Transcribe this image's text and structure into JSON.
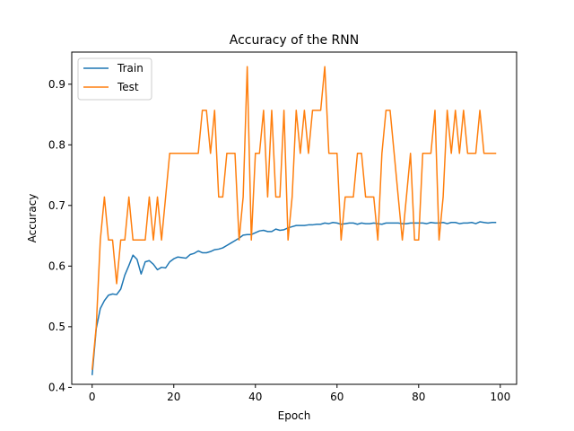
{
  "chart_data": {
    "type": "line",
    "title": "Accuracy of the RNN",
    "xlabel": "Epoch",
    "ylabel": "Accuracy",
    "xlim": [
      -5,
      104
    ],
    "ylim": [
      0.405,
      0.953
    ],
    "xticks": [
      0,
      20,
      40,
      60,
      80,
      100
    ],
    "yticks": [
      0.4,
      0.5,
      0.6,
      0.7,
      0.8,
      0.9
    ],
    "grid": false,
    "legend": {
      "position": "top-left"
    },
    "series": [
      {
        "name": "Train",
        "color": "#1f77b4",
        "x": [
          0,
          1,
          2,
          3,
          4,
          5,
          6,
          7,
          8,
          9,
          10,
          11,
          12,
          13,
          14,
          15,
          16,
          17,
          18,
          19,
          20,
          21,
          22,
          23,
          24,
          25,
          26,
          27,
          28,
          29,
          30,
          31,
          32,
          33,
          34,
          35,
          36,
          37,
          38,
          39,
          40,
          41,
          42,
          43,
          44,
          45,
          46,
          47,
          48,
          49,
          50,
          51,
          52,
          53,
          54,
          55,
          56,
          57,
          58,
          59,
          60,
          61,
          62,
          63,
          64,
          65,
          66,
          67,
          68,
          69,
          70,
          71,
          72,
          73,
          74,
          75,
          76,
          77,
          78,
          79,
          80,
          81,
          82,
          83,
          84,
          85,
          86,
          87,
          88,
          89,
          90,
          91,
          92,
          93,
          94,
          95,
          96,
          97,
          98,
          99
        ],
        "values": [
          0.42,
          0.497,
          0.53,
          0.543,
          0.552,
          0.554,
          0.553,
          0.562,
          0.585,
          0.601,
          0.618,
          0.611,
          0.587,
          0.607,
          0.609,
          0.603,
          0.594,
          0.598,
          0.597,
          0.607,
          0.612,
          0.615,
          0.614,
          0.613,
          0.619,
          0.621,
          0.625,
          0.622,
          0.622,
          0.624,
          0.627,
          0.628,
          0.63,
          0.634,
          0.638,
          0.642,
          0.646,
          0.651,
          0.652,
          0.652,
          0.655,
          0.658,
          0.659,
          0.657,
          0.657,
          0.661,
          0.659,
          0.66,
          0.663,
          0.665,
          0.667,
          0.667,
          0.667,
          0.668,
          0.668,
          0.669,
          0.669,
          0.671,
          0.67,
          0.672,
          0.671,
          0.669,
          0.67,
          0.671,
          0.671,
          0.669,
          0.671,
          0.67,
          0.67,
          0.671,
          0.67,
          0.669,
          0.671,
          0.671,
          0.671,
          0.671,
          0.67,
          0.67,
          0.671,
          0.671,
          0.671,
          0.671,
          0.67,
          0.672,
          0.671,
          0.671,
          0.672,
          0.67,
          0.672,
          0.672,
          0.67,
          0.671,
          0.671,
          0.672,
          0.67,
          0.673,
          0.672,
          0.671,
          0.672,
          0.672
        ]
      },
      {
        "name": "Test",
        "color": "#ff7f0e",
        "x": [
          0,
          1,
          2,
          3,
          4,
          5,
          6,
          7,
          8,
          9,
          10,
          11,
          12,
          13,
          14,
          15,
          16,
          17,
          18,
          19,
          20,
          21,
          22,
          23,
          24,
          25,
          26,
          27,
          28,
          29,
          30,
          31,
          32,
          33,
          34,
          35,
          36,
          37,
          38,
          39,
          40,
          41,
          42,
          43,
          44,
          45,
          46,
          47,
          48,
          49,
          50,
          51,
          52,
          53,
          54,
          55,
          56,
          57,
          58,
          59,
          60,
          61,
          62,
          63,
          64,
          65,
          66,
          67,
          68,
          69,
          70,
          71,
          72,
          73,
          74,
          75,
          76,
          77,
          78,
          79,
          80,
          81,
          82,
          83,
          84,
          85,
          86,
          87,
          88,
          89,
          90,
          91,
          92,
          93,
          94,
          95,
          96,
          97,
          98,
          99
        ],
        "values": [
          0.429,
          0.5,
          0.643,
          0.714,
          0.643,
          0.643,
          0.571,
          0.643,
          0.643,
          0.714,
          0.643,
          0.643,
          0.643,
          0.643,
          0.714,
          0.643,
          0.714,
          0.643,
          0.714,
          0.786,
          0.786,
          0.786,
          0.786,
          0.786,
          0.786,
          0.786,
          0.786,
          0.857,
          0.857,
          0.786,
          0.857,
          0.714,
          0.714,
          0.786,
          0.786,
          0.786,
          0.643,
          0.714,
          0.929,
          0.643,
          0.786,
          0.786,
          0.857,
          0.714,
          0.857,
          0.714,
          0.714,
          0.857,
          0.643,
          0.714,
          0.857,
          0.786,
          0.857,
          0.786,
          0.857,
          0.857,
          0.857,
          0.929,
          0.786,
          0.786,
          0.786,
          0.643,
          0.714,
          0.714,
          0.714,
          0.786,
          0.786,
          0.714,
          0.714,
          0.714,
          0.643,
          0.786,
          0.857,
          0.857,
          0.786,
          0.714,
          0.643,
          0.714,
          0.786,
          0.643,
          0.643,
          0.786,
          0.786,
          0.786,
          0.857,
          0.643,
          0.714,
          0.857,
          0.786,
          0.857,
          0.786,
          0.857,
          0.786,
          0.786,
          0.786,
          0.857,
          0.786,
          0.786,
          0.786,
          0.786
        ]
      }
    ]
  }
}
